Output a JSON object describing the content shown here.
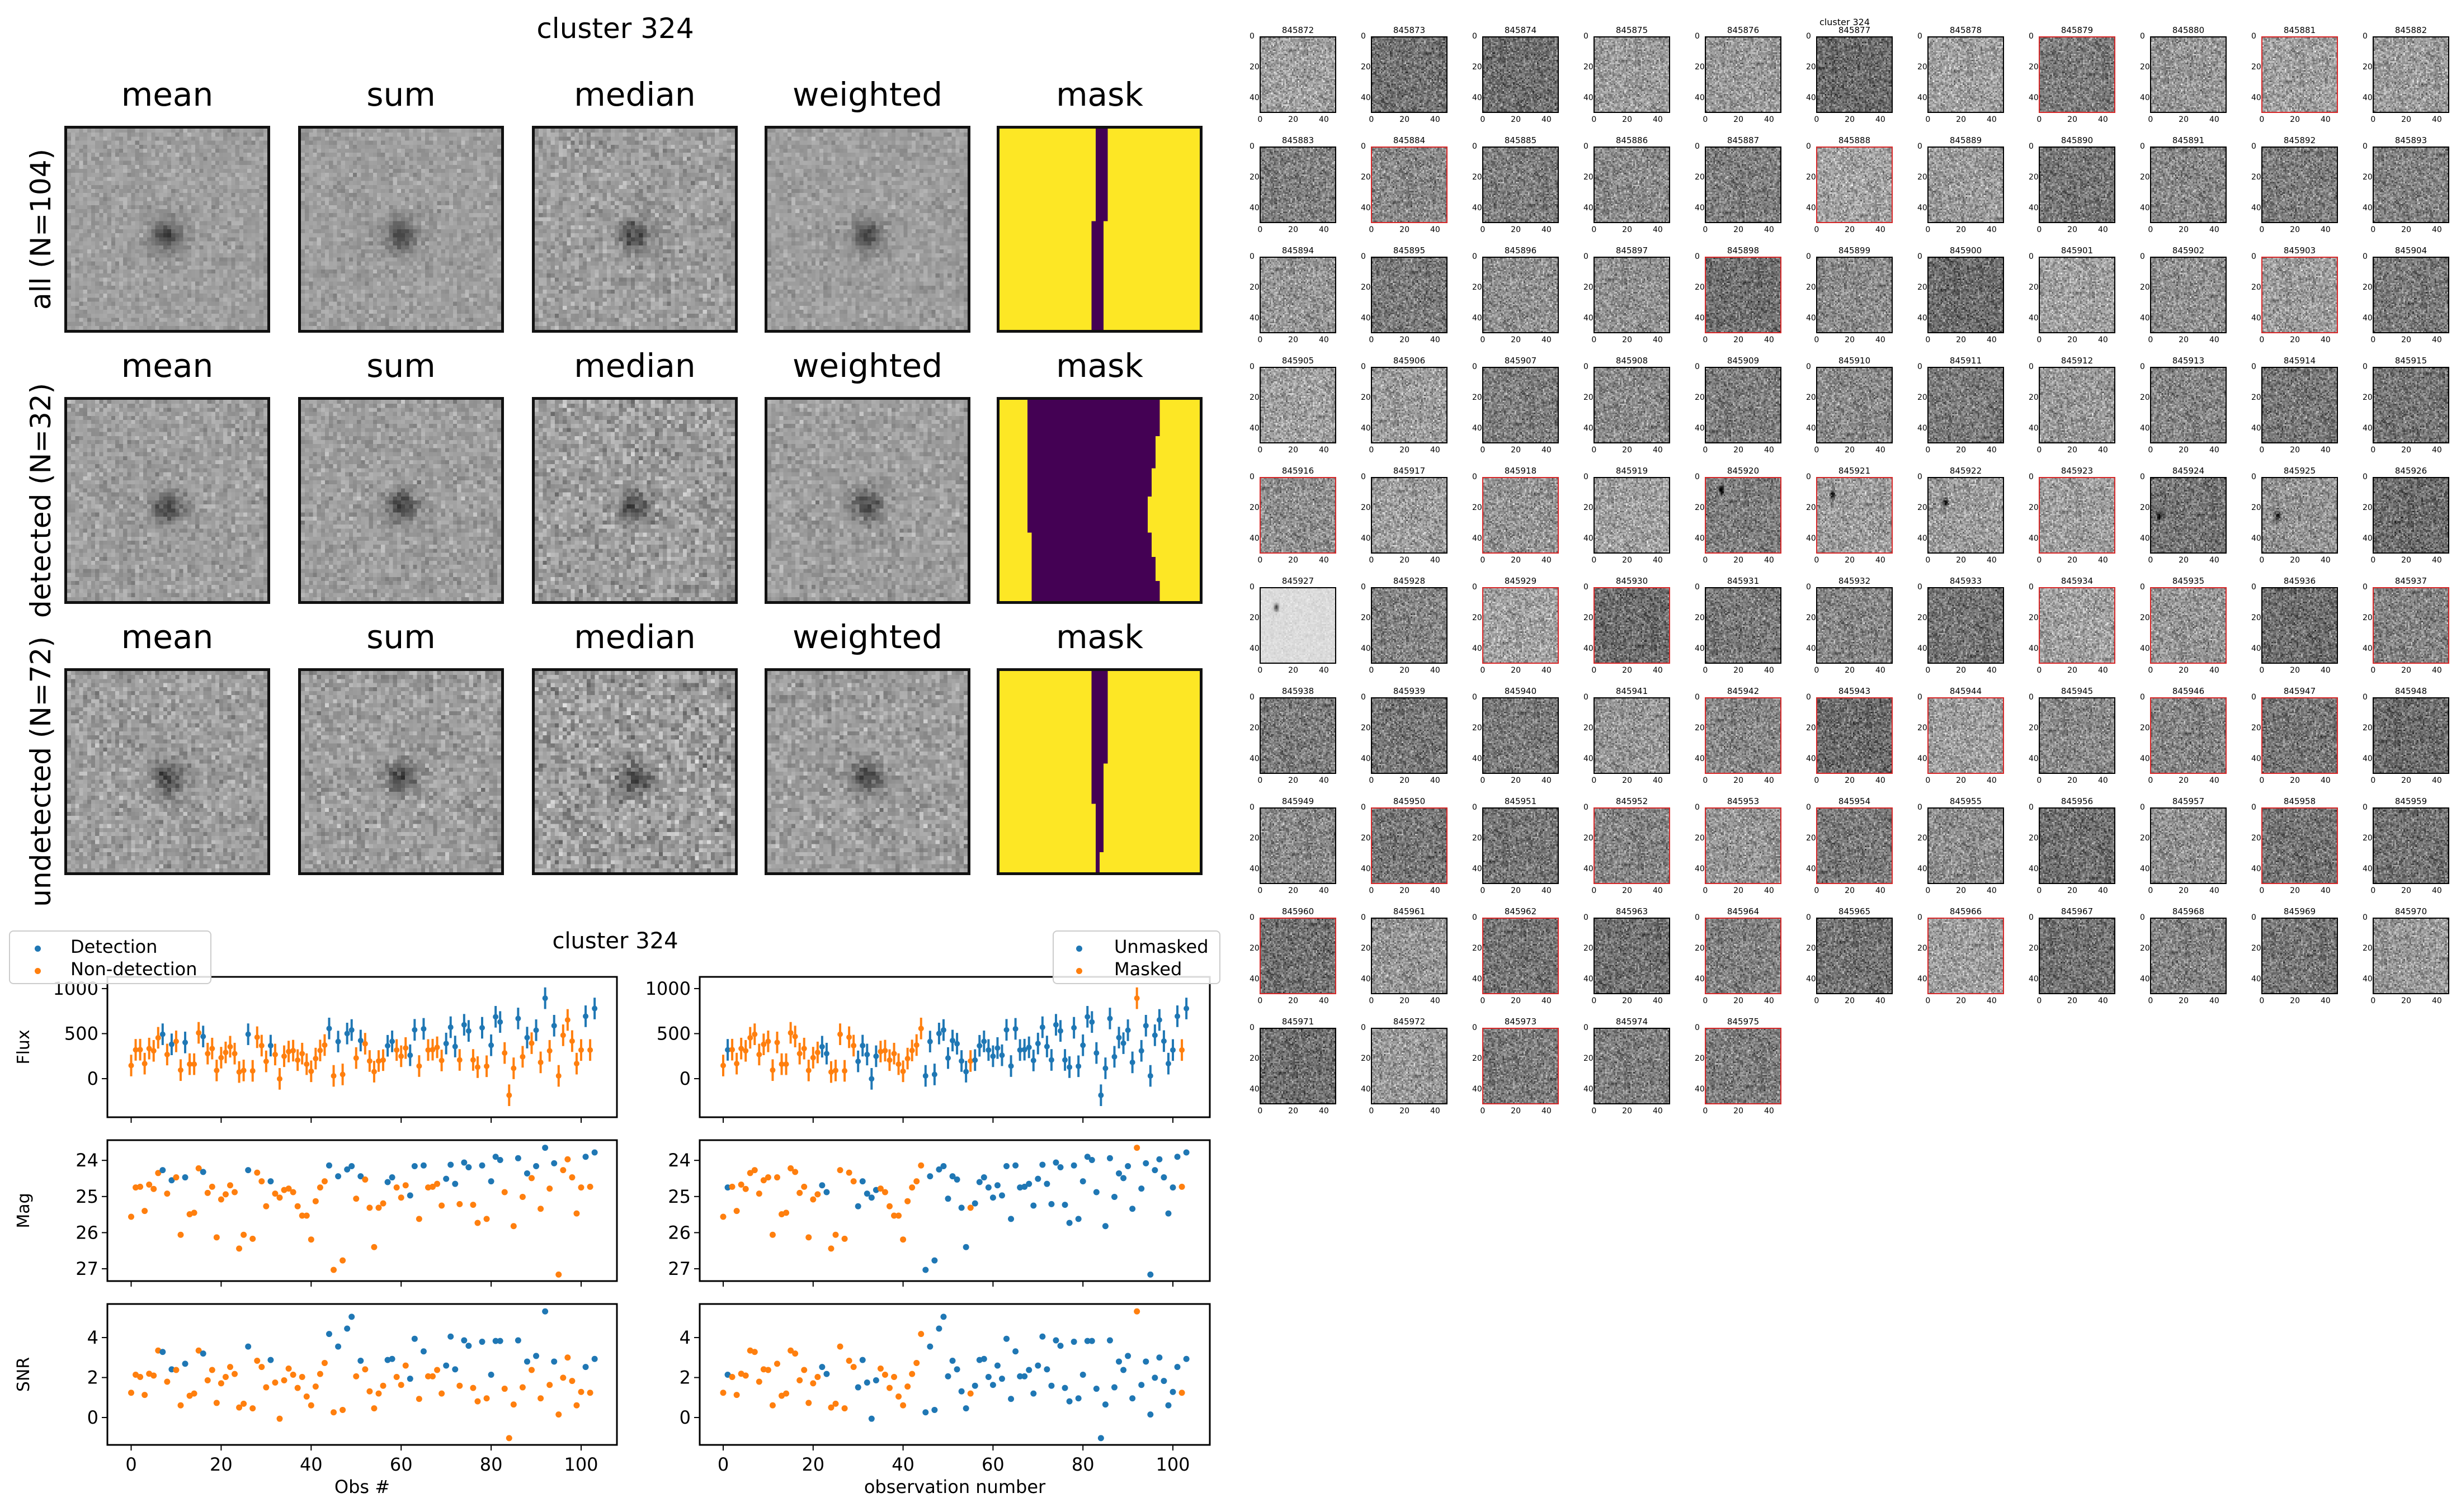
{
  "figure": {
    "title": "cluster 324",
    "columns": [
      "mean",
      "sum",
      "median",
      "weighted",
      "mask"
    ],
    "rows": [
      {
        "label": "all (N=104)",
        "mask_colors": {
          "masked": "#440154",
          "unmasked": "#fde725"
        }
      },
      {
        "label": "detected (N=32)"
      },
      {
        "label": "undetected (N=72)"
      }
    ]
  },
  "thumbnails": {
    "overlay_title": "cluster 324",
    "first_id": 845872,
    "count": 104,
    "columns": 11,
    "tick_labels": [
      "0",
      "20",
      "40"
    ],
    "highlight_color": "#d62728",
    "ids": [
      "845872",
      "845873",
      "845874",
      "845875",
      "845876",
      "845877",
      "845878",
      "845879",
      "845880",
      "845881",
      "845882",
      "845883",
      "845884",
      "845885",
      "845886",
      "845887",
      "845888",
      "845889",
      "845890",
      "845891",
      "845892",
      "845893",
      "845894",
      "845895",
      "845896",
      "845897",
      "845898",
      "845899",
      "845900",
      "845901",
      "845902",
      "845903",
      "845904",
      "845905",
      "845906",
      "845907",
      "845908",
      "845909",
      "845910",
      "845911",
      "845912",
      "845913",
      "845914",
      "845915",
      "845916",
      "845917",
      "845918",
      "845919",
      "845920",
      "845921",
      "845922",
      "845923",
      "845924",
      "845925",
      "845926",
      "845927",
      "845928",
      "845929",
      "845930",
      "845931",
      "845932",
      "845933",
      "845934",
      "845935",
      "845936",
      "845937",
      "845938",
      "845939",
      "845940",
      "845941",
      "845942",
      "845943",
      "845944",
      "845945",
      "845946",
      "845947",
      "845948",
      "845949",
      "845950",
      "845951",
      "845952",
      "845953",
      "845954",
      "845955",
      "845956",
      "845957",
      "845958",
      "845959",
      "845960",
      "845961",
      "845962",
      "845963",
      "845964",
      "845965",
      "845966",
      "845967",
      "845968",
      "845969",
      "845970",
      "845971",
      "845972",
      "845973",
      "845974",
      "845975"
    ],
    "highlighted_ids": [
      "845879",
      "845881",
      "845884",
      "845888",
      "845898",
      "845903",
      "845916",
      "845918",
      "845920",
      "845921",
      "845923",
      "845929",
      "845930",
      "845934",
      "845935",
      "845937",
      "845942",
      "845943",
      "845944",
      "845946",
      "845947",
      "845950",
      "845952",
      "845953",
      "845954",
      "845958",
      "845960",
      "845962",
      "845964",
      "845966",
      "845973",
      "845975"
    ]
  },
  "chart_data": [
    {
      "type": "scatter",
      "title": "cluster 324",
      "panel": "left",
      "xlabel": "Obs #",
      "xlim": [
        -5,
        108
      ],
      "xticks": [
        0,
        20,
        40,
        60,
        80,
        100
      ],
      "legend": {
        "position": "top-left",
        "entries": [
          {
            "label": "Detection",
            "color": "#1f77b4"
          },
          {
            "label": "Non-detection",
            "color": "#ff7f0e"
          }
        ]
      },
      "color_by": "detected",
      "subplots": [
        {
          "ylabel": "Flux",
          "ylim": [
            -428,
            1130
          ],
          "yticks": [
            0,
            500,
            1000
          ],
          "errorbars": true
        },
        {
          "ylabel": "Mag",
          "ylim": [
            27.34,
            23.44
          ],
          "yticks": [
            24,
            25,
            26,
            27
          ],
          "inverted": true
        },
        {
          "ylabel": "SNR",
          "ylim": [
            -1.37,
            5.68
          ],
          "yticks": [
            0,
            2,
            4
          ]
        }
      ]
    },
    {
      "type": "scatter",
      "panel": "right",
      "xlabel": "observation number",
      "xlim": [
        -5,
        108
      ],
      "xticks": [
        0,
        20,
        40,
        60,
        80,
        100
      ],
      "legend": {
        "position": "top-right",
        "entries": [
          {
            "label": "Unmasked",
            "color": "#1f77b4"
          },
          {
            "label": "Masked",
            "color": "#ff7f0e"
          }
        ]
      },
      "color_by": "masked",
      "subplots": [
        {
          "ylabel": "",
          "ylim": [
            -428,
            1130
          ],
          "yticks": [
            0,
            500,
            1000
          ],
          "errorbars": true
        },
        {
          "ylabel": "",
          "ylim": [
            27.34,
            23.44
          ],
          "yticks": [
            24,
            25,
            26,
            27
          ],
          "inverted": true
        },
        {
          "ylabel": "",
          "ylim": [
            -1.37,
            5.68
          ],
          "yticks": [
            0,
            2,
            4
          ]
        }
      ]
    }
  ],
  "observations": {
    "flux_err": 120,
    "flux": [
      146,
      320,
      322,
      167,
      334,
      309,
      454,
      493,
      268,
      381,
      414,
      95,
      402,
      161,
      161,
      509,
      468,
      278,
      334,
      91,
      233,
      291,
      355,
      278,
      74,
      91,
      493,
      87,
      460,
      367,
      192,
      367,
      268,
      -2,
      249,
      301,
      311,
      206,
      278,
      161,
      82,
      223,
      313,
      373,
      557,
      31,
      412,
      47,
      501,
      540,
      229,
      423,
      388,
      196,
      78,
      196,
      206,
      365,
      414,
      318,
      249,
      340,
      260,
      542,
      140,
      553,
      318,
      322,
      348,
      202,
      390,
      571,
      357,
      208,
      598,
      530,
      208,
      128,
      565,
      138,
      371,
      687,
      629,
      285,
      -184,
      115,
      668,
      243,
      456,
      394,
      538,
      181,
      893,
      309,
      588,
      31,
      482,
      652,
      417,
      167,
      318,
      693,
      318,
      779
    ],
    "mag": [
      25.56,
      24.75,
      24.73,
      25.4,
      24.67,
      24.79,
      24.35,
      24.27,
      24.92,
      24.55,
      24.47,
      26.06,
      24.47,
      25.49,
      25.45,
      24.22,
      24.32,
      24.9,
      24.73,
      26.13,
      25.08,
      24.94,
      24.69,
      24.88,
      26.44,
      26.06,
      24.27,
      26.17,
      24.34,
      24.58,
      25.27,
      24.58,
      24.92,
      25.03,
      24.82,
      24.78,
      24.88,
      25.27,
      25.53,
      25.53,
      26.19,
      25.13,
      24.75,
      24.58,
      24.14,
      27.03,
      24.44,
      26.77,
      24.25,
      24.16,
      25.06,
      24.44,
      24.53,
      25.31,
      26.4,
      25.31,
      25.19,
      24.6,
      24.47,
      24.75,
      25.03,
      24.69,
      24.97,
      24.16,
      25.62,
      24.14,
      24.75,
      24.73,
      24.65,
      25.25,
      24.51,
      24.12,
      24.65,
      25.21,
      24.06,
      24.19,
      25.23,
      25.73,
      24.14,
      25.62,
      24.58,
      23.9,
      23.99,
      24.88,
      null,
      25.82,
      23.94,
      25.01,
      24.36,
      24.49,
      24.16,
      25.34,
      23.65,
      24.78,
      24.08,
      27.16,
      24.27,
      23.97,
      24.47,
      25.47,
      24.75,
      23.9,
      24.73,
      23.78
    ],
    "snr": [
      1.24,
      2.14,
      2.03,
      1.13,
      2.19,
      2.1,
      3.35,
      3.28,
      1.79,
      2.41,
      2.38,
      0.61,
      2.69,
      1.09,
      1.2,
      3.35,
      3.2,
      1.86,
      2.38,
      0.73,
      1.71,
      2.03,
      2.53,
      2.18,
      0.5,
      0.69,
      3.55,
      0.46,
      2.84,
      2.53,
      1.51,
      2.88,
      1.75,
      -0.06,
      1.86,
      2.45,
      2.14,
      1.48,
      2.03,
      1.05,
      0.61,
      1.55,
      2.18,
      2.73,
      4.18,
      0.26,
      3.55,
      0.38,
      4.45,
      5.04,
      2.06,
      2.84,
      2.41,
      1.31,
      0.46,
      1.2,
      1.59,
      2.88,
      2.93,
      2.03,
      1.63,
      2.6,
      1.94,
      3.94,
      0.93,
      3.31,
      2.06,
      2.06,
      2.38,
      1.2,
      2.6,
      4.05,
      2.41,
      1.59,
      3.86,
      3.59,
      1.48,
      0.81,
      3.79,
      0.96,
      2.14,
      3.83,
      3.83,
      1.44,
      -1.03,
      0.65,
      3.86,
      1.51,
      2.8,
      2.38,
      3.08,
      0.96,
      5.31,
      1.63,
      2.8,
      0.15,
      1.99,
      3.0,
      1.83,
      0.61,
      1.28,
      2.53,
      1.24,
      2.93
    ],
    "detected": [
      7,
      9,
      12,
      16,
      26,
      31,
      44,
      46,
      48,
      49,
      51,
      57,
      58,
      62,
      63,
      65,
      70,
      71,
      72,
      74,
      75,
      78,
      80,
      81,
      82,
      86,
      88,
      90,
      92,
      94,
      101,
      103
    ],
    "masked": [
      0,
      2,
      3,
      4,
      5,
      6,
      7,
      8,
      9,
      10,
      11,
      12,
      13,
      14,
      15,
      16,
      17,
      18,
      19,
      20,
      21,
      24,
      25,
      26,
      27,
      28,
      29,
      35,
      36,
      37,
      38,
      39,
      40,
      41,
      42,
      43,
      44,
      55,
      92,
      102
    ]
  },
  "colors": {
    "blue": "#1f77b4",
    "orange": "#ff7f0e",
    "highlight": "#d62728"
  }
}
